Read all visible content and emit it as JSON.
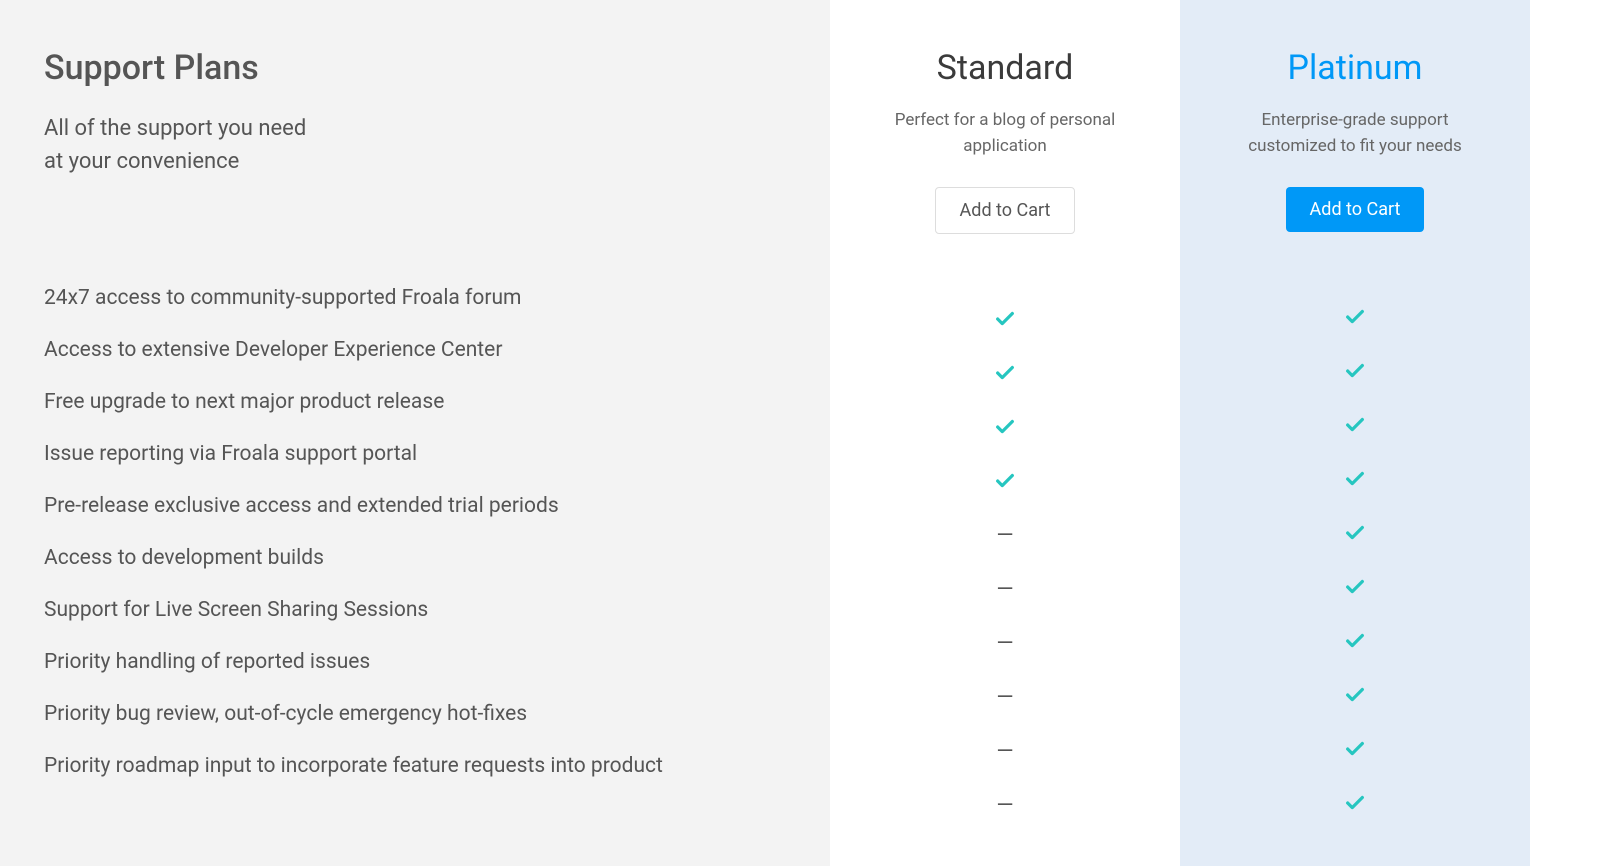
{
  "header": {
    "title": "Support Plans",
    "subtitle_line1": "All of the support you need",
    "subtitle_line2": "at your convenience"
  },
  "features": [
    "24x7 access to community-supported Froala forum",
    "Access to extensive Developer Experience Center",
    "Free upgrade to next major product release",
    "Issue reporting via Froala support portal",
    "Pre-release exclusive access and extended trial periods",
    "Access to development builds",
    "Support for Live Screen Sharing Sessions",
    "Priority handling of reported issues",
    "Priority bug review, out-of-cycle emergency hot-fixes",
    "Priority roadmap input to incorporate feature requests into product"
  ],
  "plans": {
    "standard": {
      "title": "Standard",
      "description": "Perfect for a blog of personal application",
      "cta": "Add to Cart",
      "values": [
        "check",
        "check",
        "check",
        "check",
        "dash",
        "dash",
        "dash",
        "dash",
        "dash",
        "dash"
      ]
    },
    "platinum": {
      "title": "Platinum",
      "description": "Enterprise-grade support customized to fit your needs",
      "cta": "Add to Cart",
      "values": [
        "check",
        "check",
        "check",
        "check",
        "check",
        "check",
        "check",
        "check",
        "check",
        "check"
      ]
    }
  },
  "colors": {
    "left_bg": "#f3f3f3",
    "platinum_bg": "#e3ecf7",
    "text": "#555555",
    "accent": "#0098f7",
    "check": "#26c6c0",
    "dash_symbol": "—"
  }
}
